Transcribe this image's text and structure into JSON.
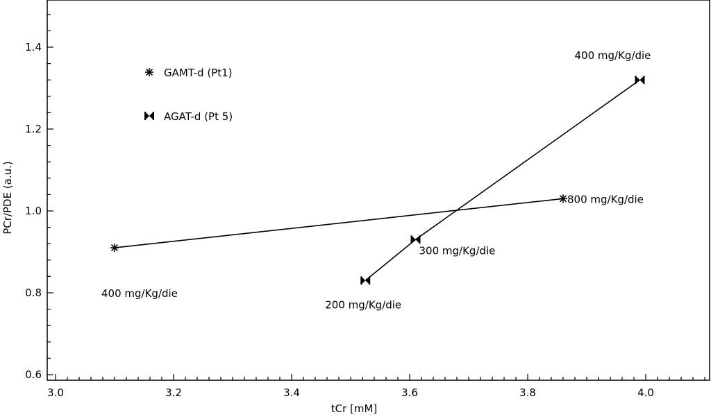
{
  "chart_data": {
    "type": "line",
    "title": "",
    "xlabel": "tCr [mM]",
    "ylabel": "PCr/PDE (a.u.)",
    "xlim": [
      3.0,
      4.1
    ],
    "ylim": [
      0.59,
      1.51
    ],
    "x_ticks": [
      3.0,
      3.2,
      3.4,
      3.6,
      3.8,
      4.0
    ],
    "x_tick_labels": [
      "3.0",
      "3.2",
      "3.4",
      "3.6",
      "3.8",
      "4.0"
    ],
    "y_ticks": [
      0.6,
      0.8,
      1.0,
      1.2,
      1.4
    ],
    "y_tick_labels": [
      "0.6",
      "0.8",
      "1.0",
      "1.2",
      "1.4"
    ],
    "grid": false,
    "legend_position": "top-left",
    "series": [
      {
        "name": "GAMT-d (Pt1)",
        "marker": "asterisk",
        "color": "#000000",
        "points": [
          {
            "x": 3.1,
            "y": 0.91,
            "label": "400 mg/Kg/die",
            "label_pos": "below"
          },
          {
            "x": 3.86,
            "y": 1.03,
            "label": "800 mg/Kg/die",
            "label_pos": "right"
          }
        ]
      },
      {
        "name": "AGAT-d (Pt 5)",
        "marker": "bowtie",
        "color": "#000000",
        "points": [
          {
            "x": 3.525,
            "y": 0.83,
            "label": "200 mg/Kg/die",
            "label_pos": "below"
          },
          {
            "x": 3.61,
            "y": 0.93,
            "label": "300 mg/Kg/die",
            "label_pos": "below-right"
          },
          {
            "x": 3.99,
            "y": 1.32,
            "label": "400 mg/Kg/die",
            "label_pos": "above"
          }
        ]
      }
    ]
  }
}
